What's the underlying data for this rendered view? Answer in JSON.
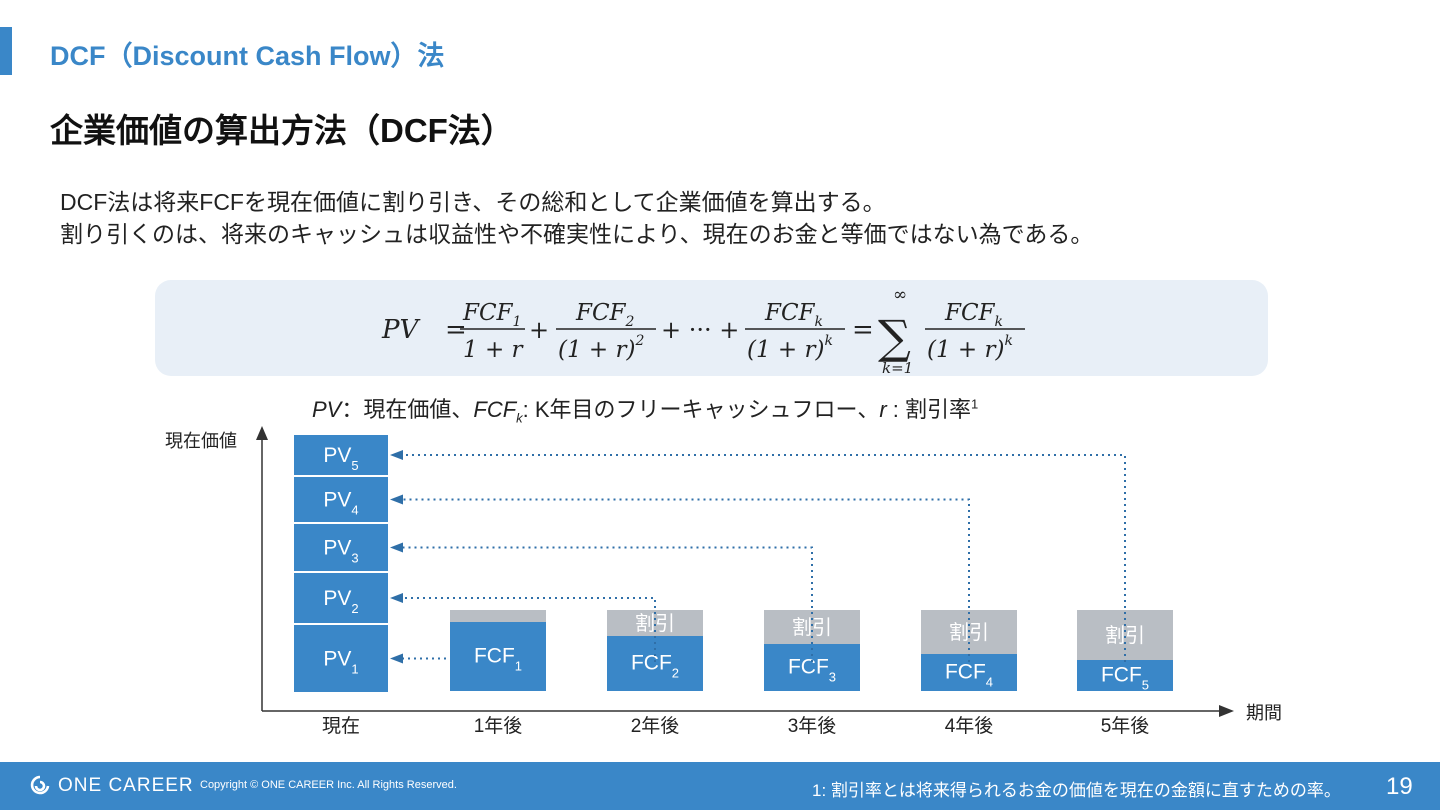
{
  "header": {
    "section_title": "DCF（Discount Cash Flow）法",
    "page_title": "企業価値の算出方法（DCF法）"
  },
  "description": {
    "line1": "DCF法は将来FCFを現在価値に割り引き、その総和として企業価値を算出する。",
    "line2": "割り引くのは、将来のキャッシュは収益性や不確実性により、現在のお金と等価ではない為である。"
  },
  "formula": {
    "lhs": "PV",
    "term1_num": "FCF",
    "term1_num_sub": "1",
    "term1_den": "1 + r",
    "term2_num": "FCF",
    "term2_num_sub": "2",
    "term2_den": "(1 + r)",
    "term2_den_sup": "2",
    "ellipsis": "+ ··· +",
    "termk_num": "FCF",
    "termk_num_sub": "k",
    "termk_den": "(1 + r)",
    "termk_den_sup": "k",
    "sum_upper": "∞",
    "sum_lower": "k=1",
    "sum_num": "FCF",
    "sum_num_sub": "k",
    "sum_den": "(1 + r)",
    "sum_den_sup": "k"
  },
  "legend": {
    "pv": "PV",
    "pv_sep": "：",
    "pv_desc": "現在価値、",
    "fcf": "FCF",
    "fcf_sub": "k",
    "fcf_desc": ": K年目のフリーキャッシュフロー、",
    "r": "r",
    "r_desc": " : 割引率",
    "r_note": "1"
  },
  "diagram": {
    "y_axis_label": "現在価値",
    "x_axis_label": "期間",
    "colors": {
      "blue": "#3a87c8",
      "gray": "#b9bec4",
      "arrow": "#2f6fa8",
      "axis": "#333333"
    },
    "x_labels": [
      "現在",
      "1年後",
      "2年後",
      "3年後",
      "4年後",
      "5年後"
    ],
    "pv_boxes": [
      {
        "label": "PV",
        "sub": "5"
      },
      {
        "label": "PV",
        "sub": "4"
      },
      {
        "label": "PV",
        "sub": "3"
      },
      {
        "label": "PV",
        "sub": "2"
      },
      {
        "label": "PV",
        "sub": "1"
      }
    ],
    "fcf_bars": [
      {
        "label": "FCF",
        "sub": "1",
        "discount_label": ""
      },
      {
        "label": "FCF",
        "sub": "2",
        "discount_label": "割引"
      },
      {
        "label": "FCF",
        "sub": "3",
        "discount_label": "割引"
      },
      {
        "label": "FCF",
        "sub": "4",
        "discount_label": "割引"
      },
      {
        "label": "FCF",
        "sub": "5",
        "discount_label": "割引"
      }
    ]
  },
  "footer": {
    "brand": "ONE CAREER",
    "copyright": "Copyright © ONE CAREER Inc. All Rights Reserved.",
    "footnote": "1: 割引率とは将来得られるお金の価値を現在の金額に直すための率。",
    "page_number": "19"
  }
}
